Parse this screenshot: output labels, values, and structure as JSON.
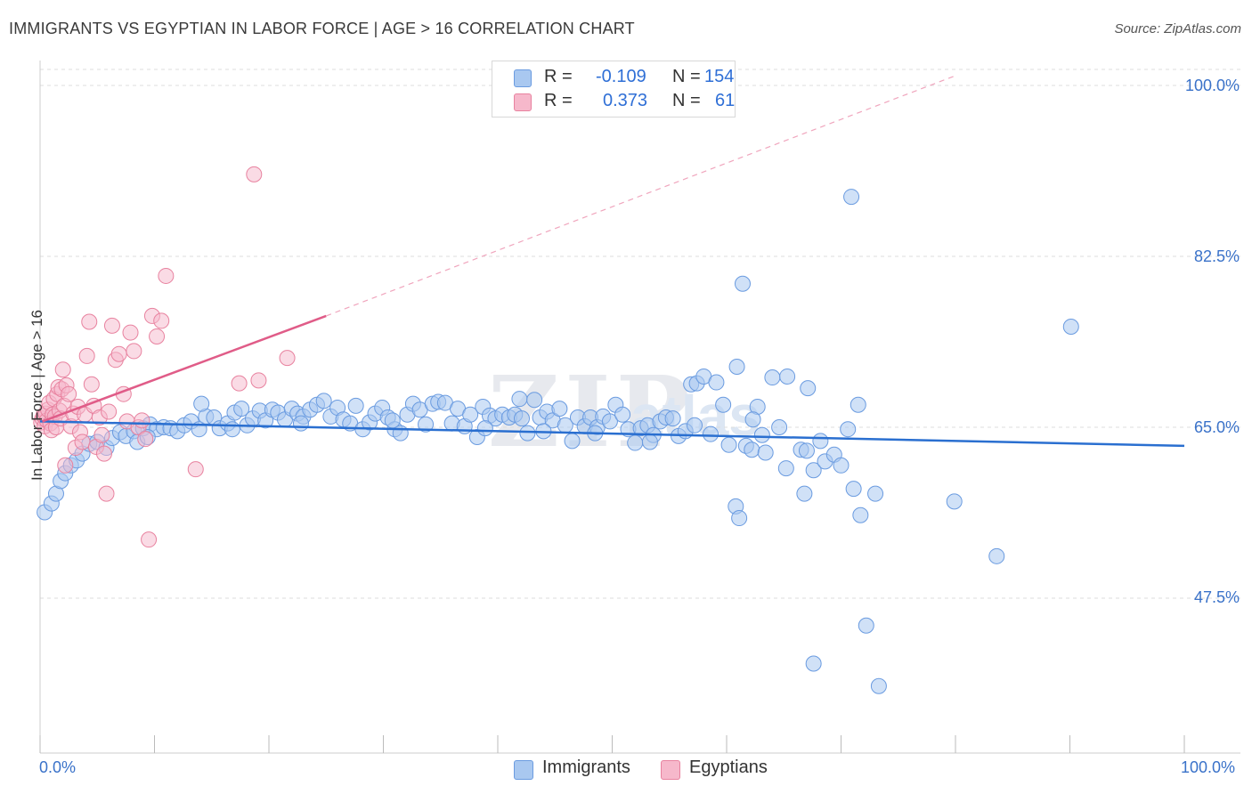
{
  "header": {
    "title": "IMMIGRANTS VS EGYPTIAN IN LABOR FORCE | AGE > 16 CORRELATION CHART",
    "source": "Source: ZipAtlas.com"
  },
  "watermark": {
    "zip": "ZIP",
    "atlas": "atlas"
  },
  "legend_top": {
    "rows": [
      {
        "r_label": "R =",
        "r_value": "-0.109",
        "n_label": "N =",
        "n_value": "154"
      },
      {
        "r_label": "R =",
        "r_value": "0.373",
        "n_label": "N =",
        "n_value": "61"
      }
    ]
  },
  "legend_bottom": {
    "items": [
      {
        "label": "Immigrants"
      },
      {
        "label": "Egyptians"
      }
    ]
  },
  "colors": {
    "blue_fill": "#a9c8f0",
    "blue_stroke": "#6a9be0",
    "blue_line": "#2a6fd0",
    "pink_fill": "#f6b8cb",
    "pink_stroke": "#e8829f",
    "pink_line": "#e05c88",
    "grid": "#dddddd",
    "tick_text": "#3a72c9"
  },
  "chart_data": {
    "type": "scatter",
    "title": "IMMIGRANTS VS EGYPTIAN IN LABOR FORCE | AGE > 16 CORRELATION CHART",
    "xlabel": "",
    "ylabel": "In Labor Force | Age > 16",
    "xlim": [
      0,
      100
    ],
    "ylim": [
      32,
      102
    ],
    "x_tick_labels": [
      "0.0%",
      "100.0%"
    ],
    "y_ticks": [
      47.5,
      65.0,
      82.5,
      100.0
    ],
    "y_tick_labels": [
      "47.5%",
      "65.0%",
      "82.5%",
      "100.0%"
    ],
    "grid": true,
    "series": [
      {
        "name": "Immigrants",
        "color": "#a9c8f0",
        "R": -0.109,
        "N": 154,
        "trend": {
          "x": [
            0,
            100
          ],
          "y": [
            65.6,
            63.1
          ],
          "dashed_extension": false
        },
        "points": [
          [
            0.4,
            56.3
          ],
          [
            1.0,
            57.2
          ],
          [
            1.4,
            58.2
          ],
          [
            1.8,
            59.5
          ],
          [
            2.2,
            60.3
          ],
          [
            2.7,
            61.1
          ],
          [
            3.2,
            61.6
          ],
          [
            3.7,
            62.3
          ],
          [
            4.3,
            63.3
          ],
          [
            5.0,
            63.5
          ],
          [
            5.8,
            62.9
          ],
          [
            6.3,
            63.9
          ],
          [
            7.0,
            64.5
          ],
          [
            7.5,
            64.1
          ],
          [
            8.2,
            64.6
          ],
          [
            8.5,
            63.5
          ],
          [
            9.0,
            64.9
          ],
          [
            9.6,
            65.3
          ],
          [
            10.2,
            64.8
          ],
          [
            10.8,
            65.0
          ],
          [
            11.4,
            64.9
          ],
          [
            12.0,
            64.6
          ],
          [
            12.6,
            65.2
          ],
          [
            13.2,
            65.6
          ],
          [
            13.9,
            64.8
          ],
          [
            14.5,
            66.1
          ],
          [
            14.1,
            67.4
          ],
          [
            15.2,
            66.0
          ],
          [
            15.7,
            64.9
          ],
          [
            16.4,
            65.4
          ],
          [
            17.0,
            66.5
          ],
          [
            17.6,
            66.9
          ],
          [
            18.1,
            65.2
          ],
          [
            18.6,
            65.9
          ],
          [
            19.2,
            66.7
          ],
          [
            19.7,
            65.7
          ],
          [
            20.3,
            66.8
          ],
          [
            20.8,
            66.5
          ],
          [
            21.4,
            65.8
          ],
          [
            22.0,
            66.9
          ],
          [
            22.5,
            66.4
          ],
          [
            23.0,
            66.1
          ],
          [
            23.6,
            66.8
          ],
          [
            24.2,
            67.3
          ],
          [
            24.8,
            67.7
          ],
          [
            25.4,
            66.1
          ],
          [
            26.0,
            67.0
          ],
          [
            26.5,
            65.8
          ],
          [
            27.1,
            65.4
          ],
          [
            27.6,
            67.2
          ],
          [
            28.2,
            64.8
          ],
          [
            28.8,
            65.5
          ],
          [
            29.3,
            66.4
          ],
          [
            29.9,
            67.0
          ],
          [
            30.4,
            66.0
          ],
          [
            31.0,
            64.8
          ],
          [
            31.5,
            64.4
          ],
          [
            32.1,
            66.3
          ],
          [
            32.6,
            67.4
          ],
          [
            33.2,
            66.8
          ],
          [
            33.7,
            65.3
          ],
          [
            34.3,
            67.4
          ],
          [
            34.8,
            67.6
          ],
          [
            35.4,
            67.5
          ],
          [
            36.0,
            65.4
          ],
          [
            36.5,
            66.9
          ],
          [
            37.1,
            65.1
          ],
          [
            37.6,
            66.3
          ],
          [
            38.2,
            64.0
          ],
          [
            38.7,
            67.1
          ],
          [
            39.3,
            66.2
          ],
          [
            39.8,
            65.9
          ],
          [
            40.4,
            66.3
          ],
          [
            41.0,
            66.0
          ],
          [
            41.5,
            66.3
          ],
          [
            42.1,
            65.9
          ],
          [
            42.6,
            64.4
          ],
          [
            41.9,
            67.9
          ],
          [
            43.2,
            67.8
          ],
          [
            43.7,
            66.0
          ],
          [
            44.3,
            66.6
          ],
          [
            44.8,
            65.7
          ],
          [
            45.4,
            66.9
          ],
          [
            45.9,
            65.2
          ],
          [
            46.5,
            63.6
          ],
          [
            47.0,
            66.0
          ],
          [
            47.6,
            65.1
          ],
          [
            48.1,
            66.0
          ],
          [
            48.7,
            65.0
          ],
          [
            48.5,
            64.4
          ],
          [
            49.2,
            66.1
          ],
          [
            49.8,
            65.6
          ],
          [
            50.3,
            67.3
          ],
          [
            50.9,
            66.3
          ],
          [
            51.4,
            64.8
          ],
          [
            52.0,
            63.4
          ],
          [
            52.5,
            64.9
          ],
          [
            53.1,
            65.2
          ],
          [
            53.6,
            64.2
          ],
          [
            54.2,
            65.6
          ],
          [
            54.7,
            66.0
          ],
          [
            55.3,
            65.9
          ],
          [
            55.8,
            64.1
          ],
          [
            56.4,
            64.6
          ],
          [
            56.9,
            69.4
          ],
          [
            57.4,
            69.5
          ],
          [
            58.0,
            70.2
          ],
          [
            58.6,
            64.3
          ],
          [
            59.1,
            69.6
          ],
          [
            59.7,
            67.3
          ],
          [
            60.2,
            63.2
          ],
          [
            60.8,
            56.9
          ],
          [
            61.1,
            55.7
          ],
          [
            61.7,
            63.1
          ],
          [
            62.2,
            62.7
          ],
          [
            62.7,
            67.1
          ],
          [
            63.1,
            64.2
          ],
          [
            63.4,
            62.4
          ],
          [
            64.0,
            70.1
          ],
          [
            64.6,
            65.0
          ],
          [
            65.2,
            60.8
          ],
          [
            66.5,
            62.7
          ],
          [
            67.0,
            62.6
          ],
          [
            67.6,
            60.6
          ],
          [
            68.2,
            63.6
          ],
          [
            68.6,
            61.5
          ],
          [
            69.4,
            62.2
          ],
          [
            70.0,
            61.1
          ],
          [
            70.6,
            64.8
          ],
          [
            71.1,
            58.7
          ],
          [
            71.7,
            56.0
          ],
          [
            73.0,
            58.2
          ],
          [
            70.9,
            88.6
          ],
          [
            61.4,
            79.7
          ],
          [
            60.9,
            71.2
          ],
          [
            65.3,
            70.2
          ],
          [
            67.1,
            69.0
          ],
          [
            71.5,
            67.3
          ],
          [
            79.9,
            57.4
          ],
          [
            83.6,
            51.8
          ],
          [
            90.1,
            75.3
          ],
          [
            72.2,
            44.7
          ],
          [
            67.6,
            40.8
          ],
          [
            73.3,
            38.5
          ],
          [
            66.8,
            58.2
          ],
          [
            62.3,
            65.8
          ],
          [
            57.2,
            65.2
          ],
          [
            53.3,
            63.5
          ],
          [
            44.0,
            64.6
          ],
          [
            38.9,
            64.9
          ],
          [
            30.8,
            65.7
          ],
          [
            22.8,
            65.4
          ],
          [
            16.8,
            64.8
          ],
          [
            9.4,
            64.0
          ]
        ]
      },
      {
        "name": "Egyptians",
        "color": "#f6b8cb",
        "R": 0.373,
        "N": 61,
        "trend": {
          "x": [
            0.2,
            25.0
          ],
          "y": [
            65.6,
            76.4
          ],
          "dashed_to": [
            80.0,
            101.0
          ]
        },
        "points": [
          [
            0.1,
            65.5
          ],
          [
            0.2,
            65.9
          ],
          [
            0.3,
            66.2
          ],
          [
            0.4,
            65.1
          ],
          [
            0.5,
            66.4
          ],
          [
            0.6,
            65.7
          ],
          [
            0.7,
            66.8
          ],
          [
            0.8,
            67.5
          ],
          [
            0.9,
            65.4
          ],
          [
            1.0,
            64.7
          ],
          [
            1.1,
            66.3
          ],
          [
            1.2,
            67.9
          ],
          [
            1.3,
            66.1
          ],
          [
            1.4,
            65.0
          ],
          [
            1.5,
            68.4
          ],
          [
            1.6,
            69.1
          ],
          [
            1.7,
            66.7
          ],
          [
            1.8,
            65.9
          ],
          [
            1.9,
            68.9
          ],
          [
            2.0,
            70.9
          ],
          [
            2.1,
            67.2
          ],
          [
            2.3,
            69.3
          ],
          [
            2.5,
            68.4
          ],
          [
            2.7,
            65.1
          ],
          [
            2.9,
            66.4
          ],
          [
            3.1,
            62.9
          ],
          [
            3.3,
            67.1
          ],
          [
            3.5,
            64.5
          ],
          [
            3.7,
            63.5
          ],
          [
            3.9,
            66.3
          ],
          [
            4.1,
            72.3
          ],
          [
            4.3,
            75.8
          ],
          [
            4.5,
            69.4
          ],
          [
            4.7,
            67.2
          ],
          [
            4.9,
            63.0
          ],
          [
            5.2,
            66.0
          ],
          [
            5.4,
            64.2
          ],
          [
            5.6,
            62.3
          ],
          [
            5.8,
            58.2
          ],
          [
            6.0,
            66.6
          ],
          [
            6.3,
            75.4
          ],
          [
            6.6,
            71.9
          ],
          [
            6.9,
            72.5
          ],
          [
            7.3,
            68.4
          ],
          [
            7.6,
            65.6
          ],
          [
            7.9,
            74.7
          ],
          [
            8.2,
            72.8
          ],
          [
            8.6,
            65.0
          ],
          [
            8.9,
            65.7
          ],
          [
            9.2,
            63.8
          ],
          [
            9.5,
            53.5
          ],
          [
            9.8,
            76.4
          ],
          [
            10.2,
            74.3
          ],
          [
            10.6,
            75.9
          ],
          [
            11.0,
            80.5
          ],
          [
            13.6,
            60.7
          ],
          [
            17.4,
            69.5
          ],
          [
            18.7,
            90.9
          ],
          [
            19.1,
            69.8
          ],
          [
            21.6,
            72.1
          ],
          [
            2.2,
            61.1
          ]
        ]
      }
    ]
  }
}
